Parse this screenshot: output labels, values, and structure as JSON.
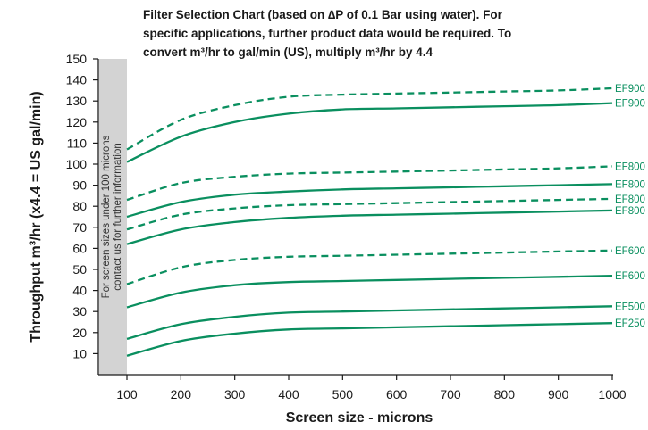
{
  "chart_data": {
    "type": "line",
    "title": [
      "Filter Selection Chart (based on ∆P of 0.1 Bar using water). For",
      "specific applications, further product data would be required. To",
      "convert m³/hr to gal/min (US), multiply m³/hr by 4.4"
    ],
    "xlabel": "Screen size - microns",
    "ylabel": "Throughput m³/hr (x4.4 = US gal/min)",
    "xlim": [
      100,
      1000
    ],
    "ylim": [
      0,
      150
    ],
    "xticks": [
      "100",
      "200",
      "300",
      "400",
      "500",
      "600",
      "700",
      "800",
      "900",
      "1000"
    ],
    "yticks": [
      "10",
      "20",
      "30",
      "40",
      "50",
      "60",
      "70",
      "80",
      "90",
      "100",
      "110",
      "120",
      "130",
      "140",
      "150"
    ],
    "x": [
      100,
      200,
      300,
      400,
      500,
      600,
      700,
      800,
      900,
      1000
    ],
    "grid": false,
    "band_note": [
      "For screen sizes under 100 microns",
      "contact us for further information"
    ],
    "line_color": "#0a8f5f",
    "band_color": "#d3d3d3",
    "series": [
      {
        "name": "EF900",
        "style": "dashed",
        "values": [
          107,
          121,
          128,
          132,
          133,
          133.5,
          134,
          134.5,
          135,
          136
        ]
      },
      {
        "name": "EF900",
        "style": "solid",
        "values": [
          101,
          113,
          120,
          124,
          126,
          126.5,
          127,
          127.5,
          128,
          129
        ]
      },
      {
        "name": "EF800",
        "style": "dashed",
        "values": [
          83,
          91,
          94,
          95.5,
          96,
          96.5,
          97,
          97.5,
          98,
          99
        ]
      },
      {
        "name": "EF800",
        "style": "solid",
        "values": [
          75,
          82,
          85.5,
          87,
          88,
          88.5,
          89,
          89.5,
          90,
          90.5
        ]
      },
      {
        "name": "EF800",
        "style": "dashed",
        "values": [
          69,
          76,
          79,
          80.5,
          81,
          81.5,
          82,
          82.5,
          83,
          83.5
        ]
      },
      {
        "name": "EF800",
        "style": "solid",
        "values": [
          62,
          69,
          72.5,
          74.5,
          75.5,
          76,
          76.5,
          77,
          77.5,
          78
        ]
      },
      {
        "name": "EF600",
        "style": "dashed",
        "values": [
          43,
          51,
          54.5,
          56,
          56.5,
          57,
          57.5,
          58,
          58.5,
          59
        ]
      },
      {
        "name": "EF600",
        "style": "solid",
        "values": [
          32,
          39,
          42.5,
          44,
          44.5,
          45,
          45.5,
          46,
          46.5,
          47
        ]
      },
      {
        "name": "EF500",
        "style": "solid",
        "values": [
          17,
          24,
          27.5,
          29.5,
          30,
          30.5,
          31,
          31.5,
          32,
          32.5
        ]
      },
      {
        "name": "EF250",
        "style": "solid",
        "values": [
          9,
          16,
          19.5,
          21.5,
          22,
          22.5,
          23,
          23.5,
          24,
          24.5
        ]
      }
    ]
  }
}
